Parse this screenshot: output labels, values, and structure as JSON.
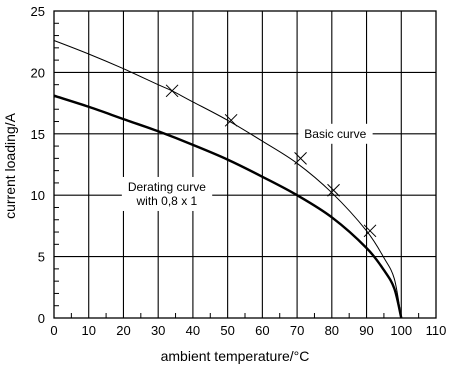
{
  "chart_data": {
    "type": "line",
    "title": "",
    "xlabel": "ambient temperature/°C",
    "ylabel": "current loading/A",
    "xlim": [
      0,
      110
    ],
    "ylim": [
      0,
      25
    ],
    "x_ticks": [
      0,
      10,
      20,
      30,
      40,
      50,
      60,
      70,
      80,
      90,
      100,
      110
    ],
    "x_tick_labels": [
      "0",
      "10",
      "20",
      "30",
      "40",
      "50",
      "60",
      "70",
      "80",
      "90",
      "100",
      "110"
    ],
    "y_ticks": [
      0,
      5,
      10,
      15,
      20,
      25
    ],
    "y_tick_labels": [
      "0",
      "5",
      "10",
      "15",
      "20",
      "25"
    ],
    "grid": true,
    "series": [
      {
        "x": [
          0,
          10,
          20,
          30,
          34,
          40,
          50,
          60,
          70,
          80,
          90,
          95,
          98,
          100
        ],
        "y": [
          22.6,
          21.5,
          20.3,
          19.0,
          18.5,
          17.6,
          16.1,
          14.4,
          12.6,
          10.2,
          7.1,
          4.9,
          3.2,
          0
        ],
        "color": "#000000",
        "weight": "thin"
      },
      {
        "x": [
          0,
          10,
          20,
          30,
          40,
          50,
          60,
          70,
          80,
          90,
          95,
          98,
          100
        ],
        "y": [
          18.1,
          17.2,
          16.2,
          15.2,
          14.1,
          12.9,
          11.5,
          10.0,
          8.2,
          5.7,
          3.9,
          2.4,
          0
        ],
        "color": "#000000",
        "weight": "thick"
      }
    ],
    "markers": [
      {
        "x": 34,
        "y": 18.5
      },
      {
        "x": 51,
        "y": 16.1
      },
      {
        "x": 71,
        "y": 13.0
      },
      {
        "x": 80.5,
        "y": 10.4
      },
      {
        "x": 91,
        "y": 7.1
      }
    ],
    "annotations": [
      {
        "id": "basic",
        "lines": [
          "Basic curve"
        ],
        "x": 81,
        "y": 15.0
      },
      {
        "id": "derating",
        "lines": [
          "Derating curve",
          "with 0,8 x 1"
        ],
        "x": 32.5,
        "y": 10.1
      }
    ]
  }
}
